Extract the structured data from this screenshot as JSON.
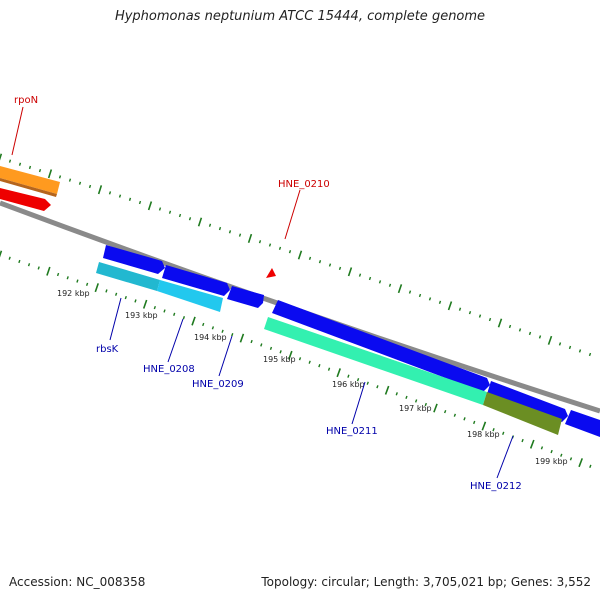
{
  "title": "Hyphomonas neptunium ATCC 15444, complete genome",
  "footer": {
    "accession": "Accession: NC_008358",
    "summary": "Topology: circular; Length: 3,705,021 bp; Genes: 3,552"
  },
  "scale_labels": [
    "192 kbp",
    "193 kbp",
    "194 kbp",
    "195 kbp",
    "196 kbp",
    "197 kbp",
    "198 kbp",
    "199 kbp"
  ],
  "gene_labels": [
    {
      "text": "rpoN",
      "color": "#cc0000"
    },
    {
      "text": "HNE_0210",
      "color": "#cc0000"
    },
    {
      "text": "rbsK",
      "color": "#0000aa"
    },
    {
      "text": "HNE_0208",
      "color": "#0000aa"
    },
    {
      "text": "HNE_0209",
      "color": "#0000aa"
    },
    {
      "text": "HNE_0211",
      "color": "#0000aa"
    },
    {
      "text": "HNE_0212",
      "color": "#0000aa"
    }
  ],
  "colors": {
    "backbone": "#8a8a8a",
    "tick": "#1f7a1f",
    "forward_cds": "#0a0af0",
    "reverse_cds": "#ee0000",
    "rpoN_feature": "#ff9a1f",
    "rbsK_feature": "#22b8d0",
    "hne0208_feature": "#22c8ee",
    "hne0211_feature": "#33f0b0",
    "hne0212_feature": "#6b8e23"
  }
}
